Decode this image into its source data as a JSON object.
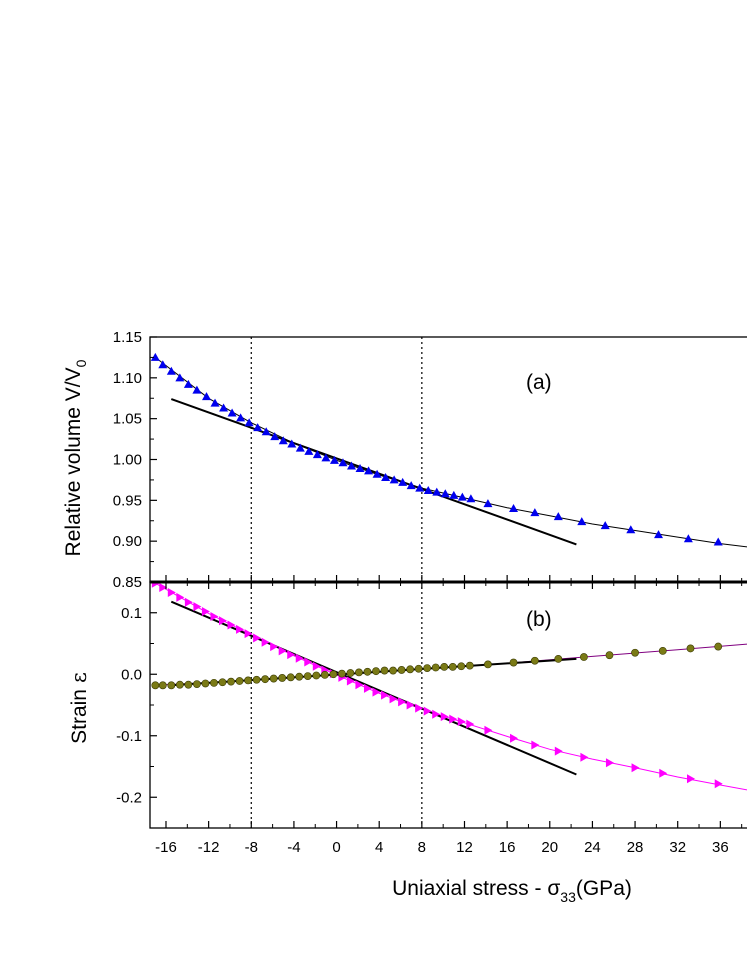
{
  "chart_data": [
    {
      "type": "scatter",
      "panel_label": "(a)",
      "ylabel_main": "Relative volume V/V",
      "ylabel_sub": "0",
      "xlim": [
        -17.5,
        38.5
      ],
      "ylim": [
        0.85,
        1.15
      ],
      "yticks": [
        "0.85",
        "0.90",
        "0.95",
        "1.00",
        "1.05",
        "1.10",
        "1.15"
      ],
      "reference_lines_x": [
        -8,
        8
      ],
      "colors": {
        "markers": "#0000ee",
        "curve": "#000000",
        "fit": "#000000"
      },
      "series": [
        {
          "marker": "triangle-up",
          "x": [
            -17.0,
            -16.3,
            -15.5,
            -14.7,
            -13.9,
            -13.1,
            -12.2,
            -11.4,
            -10.6,
            -9.8,
            -9.0,
            -8.2,
            -7.4,
            -6.6,
            -5.8,
            -5.0,
            -4.2,
            -3.4,
            -2.6,
            -1.8,
            -1.0,
            -0.2,
            0.6,
            1.4,
            2.2,
            3.0,
            3.8,
            4.6,
            5.4,
            6.2,
            7.0,
            7.8,
            8.6,
            9.4,
            10.2,
            11.0,
            11.8,
            12.6,
            14.2,
            16.6,
            18.6,
            20.8,
            23.0,
            25.2,
            27.6,
            30.2,
            33.0,
            35.8
          ],
          "y": [
            1.125,
            1.116,
            1.108,
            1.1,
            1.092,
            1.085,
            1.077,
            1.069,
            1.063,
            1.057,
            1.051,
            1.045,
            1.039,
            1.034,
            1.028,
            1.023,
            1.019,
            1.014,
            1.01,
            1.006,
            1.002,
            0.999,
            0.996,
            0.992,
            0.989,
            0.986,
            0.982,
            0.978,
            0.975,
            0.972,
            0.968,
            0.965,
            0.962,
            0.96,
            0.958,
            0.956,
            0.954,
            0.952,
            0.946,
            0.94,
            0.935,
            0.93,
            0.924,
            0.919,
            0.914,
            0.908,
            0.903,
            0.899
          ]
        }
      ],
      "curve": {
        "x": [
          -17.0,
          -12.0,
          -8.0,
          -4.0,
          0.0,
          4.0,
          8.0,
          12.0,
          16.0,
          20.0,
          24.0,
          28.0,
          32.0,
          36.0,
          38.5
        ],
        "y": [
          1.125,
          1.075,
          1.045,
          1.02,
          0.999,
          0.981,
          0.965,
          0.953,
          0.941,
          0.931,
          0.921,
          0.913,
          0.905,
          0.897,
          0.893
        ]
      },
      "fit_line": {
        "x": [
          -15.5,
          22.5
        ],
        "y": [
          1.074,
          0.896
        ]
      }
    },
    {
      "type": "scatter",
      "panel_label": "(b)",
      "ylabel_main": "Strain",
      "ylabel_symbol": "ε",
      "xlabel_main": "Uniaxial stress  - σ",
      "xlabel_sub": "33",
      "xlabel_unit": "(GPa)",
      "xlim": [
        -17.5,
        38.5
      ],
      "ylim": [
        -0.25,
        0.15
      ],
      "xticks": [
        -16,
        -12,
        -8,
        -4,
        0,
        4,
        8,
        12,
        16,
        20,
        24,
        28,
        32,
        36
      ],
      "yticks": [
        "-0.2",
        "-0.1",
        "0.0",
        "0.1"
      ],
      "reference_lines_x": [
        -8,
        8
      ],
      "colors": {
        "magenta": "#ff00ff",
        "olive": "#7a7a16",
        "olive_line": "#800080",
        "fit": "#000000"
      },
      "series": [
        {
          "marker": "triangle-right",
          "color": "magenta",
          "x": [
            -17.0,
            -16.3,
            -15.5,
            -14.7,
            -13.9,
            -13.1,
            -12.3,
            -11.5,
            -10.7,
            -9.9,
            -9.1,
            -8.3,
            -7.5,
            -6.7,
            -5.9,
            -5.1,
            -4.3,
            -3.5,
            -2.7,
            -1.9,
            -1.1,
            -0.3,
            0.5,
            1.3,
            2.1,
            2.9,
            3.7,
            4.5,
            5.3,
            6.1,
            6.9,
            7.7,
            8.5,
            9.3,
            10.1,
            10.9,
            11.7,
            12.5,
            14.2,
            16.6,
            18.6,
            20.8,
            23.2,
            25.6,
            28.0,
            30.6,
            33.2,
            35.8
          ],
          "y": [
            0.148,
            0.141,
            0.133,
            0.125,
            0.117,
            0.11,
            0.102,
            0.094,
            0.087,
            0.08,
            0.073,
            0.066,
            0.059,
            0.052,
            0.045,
            0.038,
            0.032,
            0.026,
            0.02,
            0.013,
            0.007,
            0.001,
            -0.005,
            -0.011,
            -0.017,
            -0.023,
            -0.029,
            -0.034,
            -0.04,
            -0.045,
            -0.05,
            -0.055,
            -0.06,
            -0.065,
            -0.069,
            -0.073,
            -0.077,
            -0.081,
            -0.091,
            -0.104,
            -0.115,
            -0.125,
            -0.135,
            -0.144,
            -0.152,
            -0.161,
            -0.17,
            -0.178
          ]
        },
        {
          "marker": "circle",
          "color": "olive",
          "x": [
            -17.0,
            -16.3,
            -15.5,
            -14.7,
            -13.9,
            -13.1,
            -12.3,
            -11.5,
            -10.7,
            -9.9,
            -9.1,
            -8.3,
            -7.5,
            -6.7,
            -5.9,
            -5.1,
            -4.3,
            -3.5,
            -2.7,
            -1.9,
            -1.1,
            -0.3,
            0.5,
            1.3,
            2.1,
            2.9,
            3.7,
            4.5,
            5.3,
            6.1,
            6.9,
            7.7,
            8.5,
            9.3,
            10.1,
            10.9,
            11.7,
            12.5,
            14.2,
            16.6,
            18.6,
            20.8,
            23.2,
            25.6,
            28.0,
            30.6,
            33.2,
            35.8
          ],
          "y": [
            -0.018,
            -0.018,
            -0.018,
            -0.017,
            -0.017,
            -0.016,
            -0.015,
            -0.014,
            -0.013,
            -0.012,
            -0.011,
            -0.01,
            -0.009,
            -0.008,
            -0.007,
            -0.006,
            -0.005,
            -0.004,
            -0.003,
            -0.002,
            -0.001,
            0.0,
            0.001,
            0.002,
            0.003,
            0.004,
            0.005,
            0.006,
            0.006,
            0.007,
            0.008,
            0.009,
            0.01,
            0.011,
            0.012,
            0.012,
            0.013,
            0.014,
            0.016,
            0.019,
            0.022,
            0.025,
            0.028,
            0.031,
            0.035,
            0.038,
            0.042,
            0.045
          ]
        }
      ],
      "curves": [
        {
          "color": "magenta",
          "x": [
            -17.0,
            -12.0,
            -8.0,
            -4.0,
            0.0,
            4.0,
            8.0,
            12.0,
            16.0,
            20.0,
            24.0,
            28.0,
            32.0,
            36.0,
            38.5
          ],
          "y": [
            0.148,
            0.099,
            0.064,
            0.03,
            -0.001,
            -0.031,
            -0.057,
            -0.079,
            -0.101,
            -0.122,
            -0.138,
            -0.152,
            -0.167,
            -0.18,
            -0.188
          ]
        },
        {
          "color": "olive_line",
          "x": [
            -17.0,
            -8.0,
            0.0,
            8.0,
            16.0,
            24.0,
            32.0,
            38.5
          ],
          "y": [
            -0.018,
            -0.01,
            -0.001,
            0.009,
            0.018,
            0.029,
            0.04,
            0.049
          ]
        }
      ],
      "fit_lines": [
        {
          "x": [
            -15.5,
            22.5
          ],
          "y": [
            0.118,
            -0.163
          ]
        },
        {
          "x": [
            -15.5,
            22.5
          ],
          "y": [
            -0.018,
            0.025
          ]
        }
      ]
    }
  ]
}
